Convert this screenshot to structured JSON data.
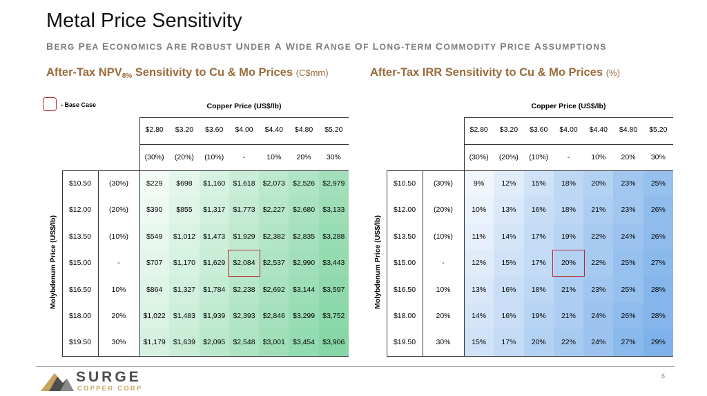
{
  "title": "Metal Price Sensitivity",
  "subtitle": "Berg PEA economics are robust under a wide range of long-term commodity price assumptions",
  "sections": {
    "npv": {
      "title_pre": "After-Tax NPV",
      "title_sub": "8%",
      "title_post": " Sensitivity to Cu & Mo Prices ",
      "unit": "(C$mm)"
    },
    "irr": {
      "title": "After-Tax IRR Sensitivity to Cu & Mo Prices ",
      "unit": "(%)"
    }
  },
  "legend": {
    "label": "- Base Case",
    "color": "#c0262d"
  },
  "axes": {
    "copper_title": "Copper Price (US$/lb)",
    "molybdenum_title": "Molybdenum Price (US$/lb)",
    "copper_prices": [
      "$2.80",
      "$3.20",
      "$3.60",
      "$4.00",
      "$4.40",
      "$4.80",
      "$5.20"
    ],
    "copper_changes": [
      "(30%)",
      "(20%)",
      "(10%)",
      "-",
      "10%",
      "20%",
      "30%"
    ],
    "moly_prices": [
      "$10.50",
      "$12.00",
      "$13.50",
      "$15.00",
      "$16.50",
      "$18.00",
      "$19.50"
    ],
    "moly_changes": [
      "(30%)",
      "(20%)",
      "(10%)",
      "-",
      "10%",
      "20%",
      "30%"
    ]
  },
  "base_case": {
    "row": 3,
    "col": 3
  },
  "npv_table": [
    [
      "$229",
      "$698",
      "$1,160",
      "$1,618",
      "$2,073",
      "$2,526",
      "$2,979"
    ],
    [
      "$390",
      "$855",
      "$1,317",
      "$1,773",
      "$2,227",
      "$2,680",
      "$3,133"
    ],
    [
      "$549",
      "$1,012",
      "$1,473",
      "$1,929",
      "$2,382",
      "$2,835",
      "$3,288"
    ],
    [
      "$707",
      "$1,170",
      "$1,629",
      "$2,084",
      "$2,537",
      "$2,990",
      "$3,443"
    ],
    [
      "$864",
      "$1,327",
      "$1,784",
      "$2,238",
      "$2,692",
      "$3,144",
      "$3,597"
    ],
    [
      "$1,022",
      "$1,483",
      "$1,939",
      "$2,393",
      "$2,846",
      "$3,299",
      "$3,752"
    ],
    [
      "$1,179",
      "$1,639",
      "$2,095",
      "$2,548",
      "$3,001",
      "$3,454",
      "$3,906"
    ]
  ],
  "irr_table": [
    [
      "9%",
      "12%",
      "15%",
      "18%",
      "20%",
      "23%",
      "25%"
    ],
    [
      "10%",
      "13%",
      "16%",
      "18%",
      "21%",
      "23%",
      "26%"
    ],
    [
      "11%",
      "14%",
      "17%",
      "19%",
      "22%",
      "24%",
      "26%"
    ],
    [
      "12%",
      "15%",
      "17%",
      "20%",
      "22%",
      "25%",
      "27%"
    ],
    [
      "13%",
      "16%",
      "18%",
      "21%",
      "23%",
      "25%",
      "28%"
    ],
    [
      "14%",
      "16%",
      "19%",
      "21%",
      "24%",
      "26%",
      "28%"
    ],
    [
      "15%",
      "17%",
      "20%",
      "22%",
      "24%",
      "27%",
      "29%"
    ]
  ],
  "colors": {
    "npv_heat_start": "#f2fbf5",
    "npv_heat_end": "#86d6a6",
    "irr_heat_start": "#f1f6fd",
    "irr_heat_end": "#7fb2ea",
    "accent_title": "#9a6a3a",
    "logo_gold": "#c8a45a"
  },
  "logo": {
    "name": "SURGE",
    "sub": "COPPER CORP"
  },
  "page_number": "6"
}
